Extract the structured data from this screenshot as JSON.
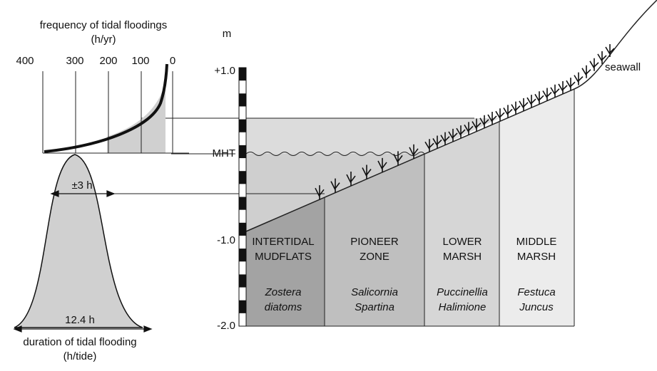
{
  "frequency_chart": {
    "title": "frequency of tidal floodings",
    "unit": "(h/yr)",
    "ticks": [
      "400",
      "300",
      "200",
      "100",
      "0"
    ]
  },
  "duration_chart": {
    "title": "duration of tidal flooding",
    "unit": "(h/tide)",
    "width_label": "±3 h",
    "base_label": "12.4 h"
  },
  "elevation_scale": {
    "unit": "m",
    "top": "+1.0",
    "mht": "MHT",
    "lower": "-1.0",
    "bottom": "-2.0"
  },
  "zones": [
    {
      "name": [
        "INTERTIDAL",
        "MUDFLATS"
      ],
      "species": [
        "Zostera",
        "diatoms"
      ]
    },
    {
      "name": [
        "PIONEER",
        "ZONE"
      ],
      "species": [
        "Salicornia",
        "Spartina"
      ]
    },
    {
      "name": [
        "LOWER",
        "MARSH"
      ],
      "species": [
        "Puccinellia",
        "Halimione"
      ]
    },
    {
      "name": [
        "MIDDLE",
        "MARSH"
      ],
      "species": [
        "Festuca",
        "Juncus"
      ]
    }
  ],
  "seawall": "seawall"
}
